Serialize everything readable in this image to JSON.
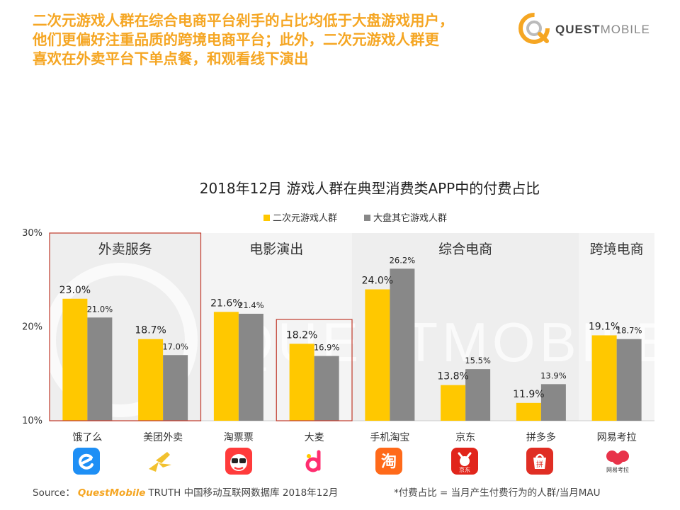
{
  "headline": {
    "line1": "二次元游戏人群在综合电商平台剁手的占比均低于大盘游戏用户，",
    "line2": "他们更偏好注重品质的跨境电商平台；此外，二次元游戏人群更",
    "line3": "喜欢在外卖平台下单点餐，和观看线下演出"
  },
  "logo": {
    "bold": "QUEST",
    "light": "MOBILE"
  },
  "watermark": "QUESTMOBILE",
  "colors": {
    "series1": "#ffc800",
    "series2": "#888888",
    "accent": "#f5a623",
    "highlight": "#c0392b"
  },
  "chart_data": {
    "type": "bar",
    "title": "2018年12月 游戏人群在典型消费类APP中的付费占比",
    "ylim": [
      10,
      30
    ],
    "yticks": [
      "10%",
      "20%",
      "30%"
    ],
    "legend_position": "top-center",
    "groups": [
      "外卖服务",
      "电影演出",
      "综合电商",
      "跨境电商"
    ],
    "categories": [
      "饿了么",
      "美团外卖",
      "淘票票",
      "大麦",
      "手机淘宝",
      "京东",
      "拼多多",
      "网易考拉"
    ],
    "series": [
      {
        "name": "二次元游戏人群",
        "values": [
          23.0,
          18.7,
          21.6,
          18.2,
          24.0,
          13.8,
          11.9,
          19.1
        ],
        "labels": [
          "23.0%",
          "18.7%",
          "21.6%",
          "18.2%",
          "24.0%",
          "13.8%",
          "11.9%",
          "19.1%"
        ]
      },
      {
        "name": "大盘其它游戏人群",
        "values": [
          21.0,
          17.0,
          21.4,
          16.9,
          26.2,
          15.5,
          13.9,
          18.7
        ],
        "labels": [
          "21.0%",
          "17.0%",
          "21.4%",
          "16.9%",
          "26.2%",
          "15.5%",
          "13.9%",
          "18.7%"
        ]
      }
    ]
  },
  "icons": {
    "eleme": "e",
    "meituan": "kangaroo-icon",
    "taopiaopiao": "ticket-face-icon",
    "damai": "d",
    "taobao": "淘",
    "jd": "京东",
    "pinduoduo": "拼",
    "kaola": "网易考拉"
  },
  "footer": {
    "source_prefix": "Source：",
    "brand": "QuestMobile",
    "source_rest": "TRUTH 中国移动互联网数据库 2018年12月",
    "note": "*付费占比 = 当月产生付费行为的人群/当月MAU"
  }
}
